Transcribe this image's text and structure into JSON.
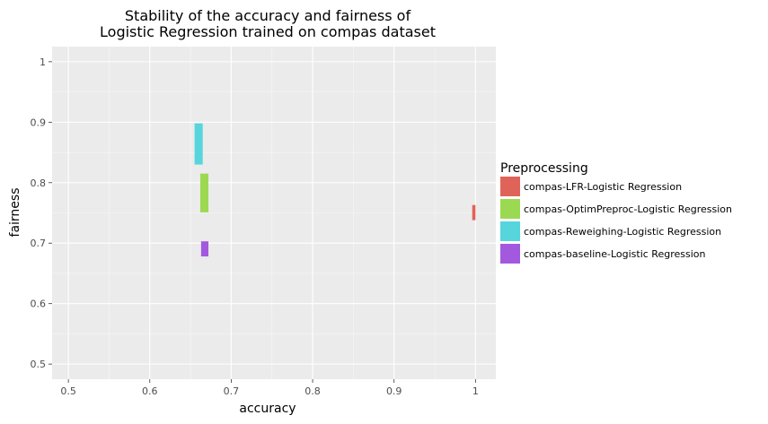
{
  "chart_data": {
    "type": "bar",
    "title_lines": [
      "Stability of the accuracy and fairness of",
      "Logistic Regression trained on compas dataset"
    ],
    "xlabel": "accuracy",
    "ylabel": "fairness",
    "xlim": [
      0.48,
      1.025
    ],
    "ylim": [
      0.475,
      1.025
    ],
    "x_ticks": [
      0.5,
      0.6,
      0.7,
      0.8,
      0.9,
      1.0
    ],
    "x_tick_labels": [
      "0.5",
      "0.6",
      "0.7",
      "0.8",
      "0.9",
      "1"
    ],
    "y_ticks": [
      0.5,
      0.6,
      0.7,
      0.8,
      0.9,
      1.0
    ],
    "y_tick_labels": [
      "0.5",
      "0.6",
      "0.7",
      "0.8",
      "0.9",
      "1"
    ],
    "grid": true,
    "legend_position": "right",
    "legend_title": "Preprocessing",
    "series": [
      {
        "name": "compas-LFR-Logistic Regression",
        "color": "#e06359",
        "x_min": 0.996,
        "x_max": 1.0,
        "y_min": 0.738,
        "y_max": 0.763
      },
      {
        "name": "compas-OptimPreproc-Logistic Regression",
        "color": "#9bd952",
        "x_min": 0.662,
        "x_max": 0.672,
        "y_min": 0.751,
        "y_max": 0.815
      },
      {
        "name": "compas-Reweighing-Logistic Regression",
        "color": "#56d5dc",
        "x_min": 0.655,
        "x_max": 0.665,
        "y_min": 0.83,
        "y_max": 0.898
      },
      {
        "name": "compas-baseline-Logistic Regression",
        "color": "#a259de",
        "x_min": 0.663,
        "x_max": 0.672,
        "y_min": 0.678,
        "y_max": 0.703
      }
    ]
  }
}
